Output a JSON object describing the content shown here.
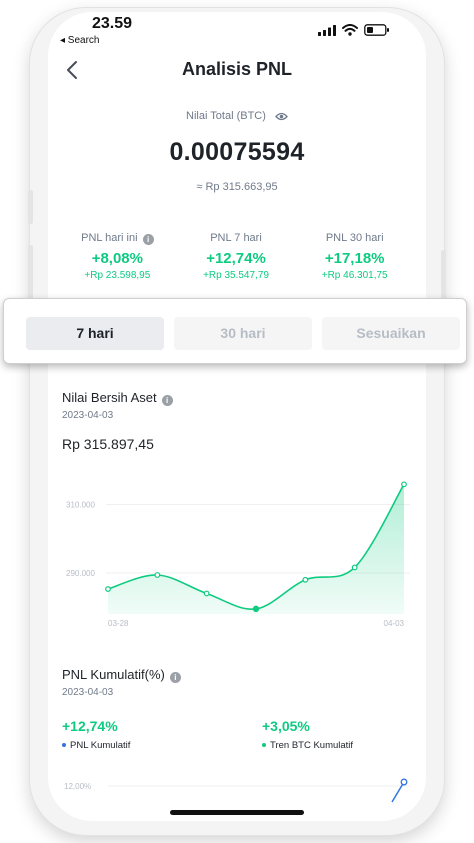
{
  "status": {
    "time": "23.59",
    "back_app": "◂ Search"
  },
  "header": {
    "title": "Analisis PNL"
  },
  "total": {
    "label": "Nilai Total (BTC)",
    "value": "0.00075594",
    "fiat": "≈ Rp 315.663,95"
  },
  "pnl": [
    {
      "label": "PNL hari ini",
      "pct": "+8,08%",
      "fiat": "+Rp 23.598,95"
    },
    {
      "label": "PNL 7 hari",
      "pct": "+12,74%",
      "fiat": "+Rp 35.547,79"
    },
    {
      "label": "PNL 30 hari",
      "pct": "+17,18%",
      "fiat": "+Rp 46.301,75"
    }
  ],
  "tabs": [
    {
      "label": "7 hari",
      "active": true
    },
    {
      "label": "30 hari",
      "active": false
    },
    {
      "label": "Sesuaikan",
      "active": false
    }
  ],
  "net_asset": {
    "title": "Nilai Bersih Aset",
    "date": "2023-04-03",
    "value": "Rp 315.897,45"
  },
  "chart_data": {
    "type": "area",
    "x": [
      "03-28",
      "03-29",
      "03-30",
      "03-31",
      "04-01",
      "04-02",
      "04-03"
    ],
    "x_tick_labels": [
      "03-28",
      "04-03"
    ],
    "y_tick_labels": [
      "310.000",
      "290.000"
    ],
    "values": [
      285300,
      289400,
      284000,
      279500,
      288000,
      291600,
      315900
    ],
    "ylim": [
      278000,
      316000
    ],
    "color": "#0ecb81",
    "highlight_index": 3
  },
  "cumulative": {
    "title": "PNL Kumulatif(%)",
    "date": "2023-04-03",
    "pnl_pct": "+12,74%",
    "pnl_label": "PNL Kumulatif",
    "btc_pct": "+3,05%",
    "btc_label": "Tren BTC Kumulatif",
    "axis_label": "12,00%",
    "pnl_color": "#3375e0",
    "btc_color": "#0ecb81"
  },
  "colors": {
    "green": "#0ecb81",
    "text": "#1e2329",
    "muted": "#707a8a"
  }
}
